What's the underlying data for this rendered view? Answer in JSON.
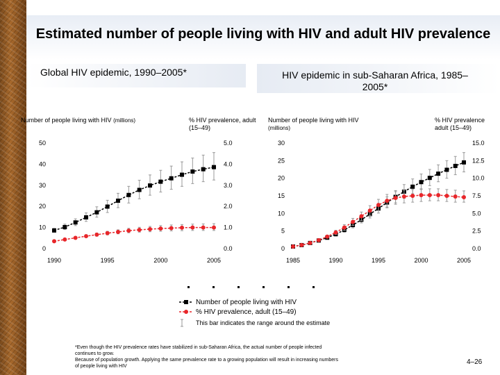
{
  "title": "Estimated number of people living with HIV and adult HIV prevalence",
  "legend": {
    "series1": "Number of people living with HIV",
    "series2": "% HIV prevalence, adult (15–49)",
    "range_note": "This bar indicates the range around the estimate"
  },
  "footnote": {
    "line1": "*Even though the HIV prevalence rates have stabilized in sub-Saharan Africa, the actual number of people infected",
    "line2": "continues to grow.",
    "line3": "Because of population growth. Applying the same prevalence rate to a growing population will result in increasing numbers",
    "line4": "of people living with HIV"
  },
  "slide_number": "4–26",
  "colors": {
    "number": "#000000",
    "prevalence": "#e8262a",
    "range": "#999999"
  },
  "chart_data": [
    {
      "type": "line",
      "title": "Global HIV epidemic, 1990–2005*",
      "left_axis_title": "Number of people living with HIV",
      "left_axis_unit": "(millions)",
      "right_axis_title": "% HIV prevalence, adult (15–49)",
      "left_ylim": [
        0,
        50
      ],
      "right_ylim": [
        0,
        5
      ],
      "left_ticks": [
        "0",
        "10",
        "20",
        "30",
        "40",
        "50"
      ],
      "right_ticks": [
        "0.0",
        "1.0",
        "2.0",
        "3.0",
        "4.0",
        "5.0"
      ],
      "x_ticks": [
        "1990",
        "1995",
        "2000",
        "2005"
      ],
      "x": [
        1990,
        1991,
        1992,
        1993,
        1994,
        1995,
        1996,
        1997,
        1998,
        1999,
        2000,
        2001,
        2002,
        2003,
        2004,
        2005
      ],
      "series": [
        {
          "name": "Number of people living with HIV",
          "axis": "left",
          "values": [
            8.6,
            10.2,
            12.4,
            14.8,
            17.2,
            19.9,
            22.7,
            25.4,
            27.8,
            29.9,
            31.7,
            33.3,
            35.0,
            36.5,
            37.6,
            38.6
          ],
          "low": [
            7.8,
            9.0,
            10.9,
            12.9,
            14.9,
            17.1,
            19.4,
            21.6,
            23.6,
            25.3,
            26.8,
            28.1,
            29.5,
            30.8,
            31.7,
            32.5
          ],
          "high": [
            9.6,
            11.6,
            14.1,
            16.9,
            19.8,
            22.9,
            26.2,
            29.5,
            32.4,
            34.9,
            37.1,
            39.1,
            41.1,
            42.9,
            44.3,
            45.5
          ]
        },
        {
          "name": "% HIV prevalence, adult (15–49)",
          "axis": "right",
          "values": [
            0.35,
            0.43,
            0.51,
            0.59,
            0.66,
            0.73,
            0.79,
            0.85,
            0.89,
            0.92,
            0.95,
            0.97,
            0.99,
            1.0,
            1.0,
            1.0
          ],
          "low": [
            0.32,
            0.39,
            0.46,
            0.53,
            0.59,
            0.65,
            0.7,
            0.75,
            0.78,
            0.8,
            0.82,
            0.84,
            0.85,
            0.86,
            0.86,
            0.86
          ],
          "high": [
            0.39,
            0.48,
            0.57,
            0.66,
            0.74,
            0.82,
            0.89,
            0.96,
            1.01,
            1.05,
            1.09,
            1.12,
            1.14,
            1.16,
            1.17,
            1.18
          ]
        }
      ]
    },
    {
      "type": "line",
      "title": "HIV epidemic in sub-Saharan Africa, 1985–2005*",
      "left_axis_title": "Number of people living with HIV",
      "left_axis_unit": "(millions)",
      "right_axis_title": "% HIV prevalence adult (15–49)",
      "left_ylim": [
        0,
        30
      ],
      "right_ylim": [
        0,
        15
      ],
      "left_ticks": [
        "0",
        "5",
        "10",
        "15",
        "20",
        "25",
        "30"
      ],
      "right_ticks": [
        "0.0",
        "2.5",
        "5.0",
        "7.5",
        "10.0",
        "12.5",
        "15.0"
      ],
      "x_ticks": [
        "1985",
        "1990",
        "1995",
        "2000",
        "2005"
      ],
      "x": [
        1985,
        1986,
        1987,
        1988,
        1989,
        1990,
        1991,
        1992,
        1993,
        1994,
        1995,
        1996,
        1997,
        1998,
        1999,
        2000,
        2001,
        2002,
        2003,
        2004,
        2005
      ],
      "series": [
        {
          "name": "Number of people living with HIV",
          "axis": "left",
          "values": [
            0.6,
            1.0,
            1.6,
            2.3,
            3.1,
            4.1,
            5.3,
            6.7,
            8.2,
            9.8,
            11.4,
            13.1,
            14.7,
            16.2,
            17.6,
            18.9,
            20.1,
            21.3,
            22.4,
            23.5,
            24.5
          ],
          "low": [
            0.5,
            0.9,
            1.4,
            2.0,
            2.7,
            3.6,
            4.7,
            5.9,
            7.3,
            8.7,
            10.1,
            11.6,
            13.0,
            14.3,
            15.6,
            16.8,
            17.9,
            19.0,
            20.0,
            21.0,
            21.8
          ],
          "high": [
            0.7,
            1.2,
            1.8,
            2.6,
            3.5,
            4.6,
            5.9,
            7.5,
            9.2,
            11.0,
            12.8,
            14.7,
            16.5,
            18.2,
            19.8,
            21.2,
            22.5,
            23.8,
            25.0,
            26.2,
            27.3
          ]
        },
        {
          "name": "% HIV prevalence, adult (15–49)",
          "axis": "right",
          "values": [
            0.3,
            0.5,
            0.8,
            1.2,
            1.7,
            2.3,
            3.0,
            3.8,
            4.6,
            5.4,
            6.2,
            6.8,
            7.2,
            7.4,
            7.5,
            7.6,
            7.6,
            7.6,
            7.5,
            7.4,
            7.3
          ],
          "low": [
            0.2,
            0.4,
            0.7,
            1.0,
            1.5,
            2.0,
            2.6,
            3.3,
            4.0,
            4.7,
            5.4,
            5.9,
            6.3,
            6.5,
            6.6,
            6.7,
            6.8,
            6.8,
            6.7,
            6.6,
            6.6
          ],
          "high": [
            0.4,
            0.6,
            0.9,
            1.4,
            1.9,
            2.6,
            3.4,
            4.3,
            5.2,
            6.1,
            7.0,
            7.7,
            8.1,
            8.3,
            8.4,
            8.5,
            8.5,
            8.5,
            8.4,
            8.3,
            8.2
          ]
        }
      ]
    }
  ]
}
